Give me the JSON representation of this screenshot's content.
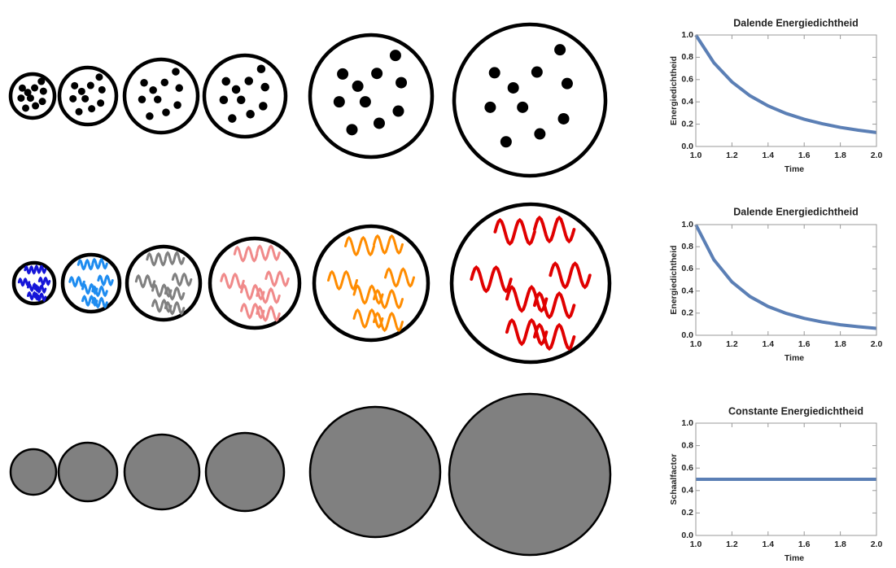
{
  "chart_data": [
    {
      "type": "line",
      "title": "Dalende Energiedichtheid",
      "x_label": "Time",
      "y_label": "Energiedichtheid",
      "x": [
        1.0,
        1.1,
        1.2,
        1.3,
        1.4,
        1.5,
        1.6,
        1.7,
        1.8,
        1.9,
        2.0
      ],
      "series": [
        {
          "color": "#5b7fb5",
          "values": [
            1,
            0.751,
            0.579,
            0.455,
            0.364,
            0.296,
            0.244,
            0.204,
            0.171,
            0.146,
            0.125
          ]
        }
      ],
      "xlim": [
        1.0,
        2.0
      ],
      "ylim": [
        0,
        1.0
      ],
      "xticks": [
        {
          "value": 1.0,
          "label": "1.0"
        },
        {
          "value": 1.2,
          "label": "1.2"
        },
        {
          "value": 1.4,
          "label": "1.4"
        },
        {
          "value": 1.6,
          "label": "1.6"
        },
        {
          "value": 1.8,
          "label": "1.8"
        },
        {
          "value": 2.0,
          "label": "2.0"
        }
      ],
      "yticks": [
        {
          "value": 0,
          "label": "0.0"
        },
        {
          "value": 0.2,
          "label": "0.2"
        },
        {
          "value": 0.4,
          "label": "0.4"
        },
        {
          "value": 0.6,
          "label": "0.6"
        },
        {
          "value": 0.8,
          "label": "0.8"
        },
        {
          "value": 1.0,
          "label": "1.0"
        }
      ]
    },
    {
      "type": "line",
      "title": "Dalende Energiedichtheid",
      "x_label": "Time",
      "y_label": "Energiedichtheid",
      "x": [
        1.0,
        1.1,
        1.2,
        1.3,
        1.4,
        1.5,
        1.6,
        1.7,
        1.8,
        1.9,
        2.0
      ],
      "series": [
        {
          "color": "#5b7fb5",
          "values": [
            1,
            0.683,
            0.482,
            0.35,
            0.26,
            0.198,
            0.153,
            0.12,
            0.095,
            0.077,
            0.0625
          ]
        }
      ],
      "xlim": [
        1.0,
        2.0
      ],
      "ylim": [
        0,
        1.0
      ],
      "xticks": [
        {
          "value": 1.0,
          "label": "1.0"
        },
        {
          "value": 1.2,
          "label": "1.2"
        },
        {
          "value": 1.4,
          "label": "1.4"
        },
        {
          "value": 1.6,
          "label": "1.6"
        },
        {
          "value": 1.8,
          "label": "1.8"
        },
        {
          "value": 2.0,
          "label": "2.0"
        }
      ],
      "yticks": [
        {
          "value": 0,
          "label": "0.0"
        },
        {
          "value": 0.2,
          "label": "0.2"
        },
        {
          "value": 0.4,
          "label": "0.4"
        },
        {
          "value": 0.6,
          "label": "0.6"
        },
        {
          "value": 0.8,
          "label": "0.8"
        },
        {
          "value": 1.0,
          "label": "1.0"
        }
      ]
    },
    {
      "type": "line",
      "title": "Constante Energiedichtheid",
      "x_label": "Time",
      "y_label": "Schaalfactor",
      "x": [
        1.0,
        2.0
      ],
      "series": [
        {
          "color": "#5b7fb5",
          "values": [
            0.5,
            0.5
          ]
        }
      ],
      "xlim": [
        1.0,
        2.0
      ],
      "ylim": [
        0,
        1.0
      ],
      "xticks": [
        {
          "value": 1.0,
          "label": "1.0"
        },
        {
          "value": 1.2,
          "label": "1.2"
        },
        {
          "value": 1.4,
          "label": "1.4"
        },
        {
          "value": 1.6,
          "label": "1.6"
        },
        {
          "value": 1.8,
          "label": "1.8"
        },
        {
          "value": 2.0,
          "label": "2.0"
        }
      ],
      "yticks": [
        {
          "value": 0,
          "label": "0.0"
        },
        {
          "value": 0.2,
          "label": "0.2"
        },
        {
          "value": 0.4,
          "label": "0.4"
        },
        {
          "value": 0.6,
          "label": "0.6"
        },
        {
          "value": 0.8,
          "label": "0.8"
        },
        {
          "value": 1.0,
          "label": "1.0"
        }
      ]
    }
  ]
}
